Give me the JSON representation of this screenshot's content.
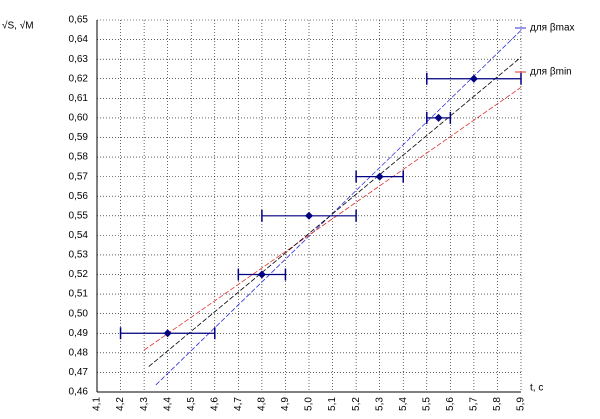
{
  "chart_data": {
    "type": "scatter",
    "y_label": "√S, √M",
    "x_label": "t, c",
    "xlim": [
      4.1,
      5.9
    ],
    "ylim": [
      0.46,
      0.65
    ],
    "grid": true,
    "xticks": [
      {
        "value": 4.1,
        "label": "4,1"
      },
      {
        "value": 4.2,
        "label": "4,2"
      },
      {
        "value": 4.3,
        "label": "4,3"
      },
      {
        "value": 4.4,
        "label": "4,4"
      },
      {
        "value": 4.5,
        "label": "4,5"
      },
      {
        "value": 4.6,
        "label": "4,6"
      },
      {
        "value": 4.7,
        "label": "4,7"
      },
      {
        "value": 4.8,
        "label": "4,8"
      },
      {
        "value": 4.9,
        "label": "4,9"
      },
      {
        "value": 5,
        "label": "5,0"
      },
      {
        "value": 5.1,
        "label": "5,1"
      },
      {
        "value": 5.2,
        "label": "5,2"
      },
      {
        "value": 5.3,
        "label": "5,3"
      },
      {
        "value": 5.4,
        "label": "5,4"
      },
      {
        "value": 5.5,
        "label": "5,5"
      },
      {
        "value": 5.6,
        "label": "5,6"
      },
      {
        "value": 5.7,
        "label": "5,7"
      },
      {
        "value": 5.8,
        "label": "5,8"
      },
      {
        "value": 5.9,
        "label": "5,9"
      }
    ],
    "yticks": [
      {
        "value": 0.46,
        "label": "0,46"
      },
      {
        "value": 0.47,
        "label": "0,47"
      },
      {
        "value": 0.48,
        "label": "0,48"
      },
      {
        "value": 0.49,
        "label": "0,49"
      },
      {
        "value": 0.5,
        "label": "0,50"
      },
      {
        "value": 0.51,
        "label": "0,51"
      },
      {
        "value": 0.52,
        "label": "0,52"
      },
      {
        "value": 0.53,
        "label": "0,53"
      },
      {
        "value": 0.54,
        "label": "0,54"
      },
      {
        "value": 0.55,
        "label": "0,55"
      },
      {
        "value": 0.56,
        "label": "0,56"
      },
      {
        "value": 0.57,
        "label": "0,57"
      },
      {
        "value": 0.58,
        "label": "0,58"
      },
      {
        "value": 0.59,
        "label": "0,59"
      },
      {
        "value": 0.6,
        "label": "0,60"
      },
      {
        "value": 0.61,
        "label": "0,61"
      },
      {
        "value": 0.62,
        "label": "0,62"
      },
      {
        "value": 0.63,
        "label": "0,63"
      },
      {
        "value": 0.64,
        "label": "0,64"
      },
      {
        "value": 0.65,
        "label": "0,65"
      }
    ],
    "points": {
      "color": "#000080",
      "x": [
        4.4,
        4.8,
        5.0,
        5.3,
        5.55,
        5.7
      ],
      "values": [
        0.49,
        0.52,
        0.55,
        0.57,
        0.6,
        0.62
      ],
      "x_low": [
        4.2,
        4.7,
        4.8,
        5.2,
        5.5,
        5.5
      ],
      "x_high": [
        4.6,
        4.9,
        5.2,
        5.4,
        5.6,
        5.9
      ]
    },
    "series": [
      {
        "name": "для βmax",
        "color": "#3030e0",
        "x": [
          4.35,
          5.9
        ],
        "values": [
          0.4636,
          0.6447
        ]
      },
      {
        "name": "для βmin",
        "color": "#e03030",
        "x": [
          4.3,
          5.9
        ],
        "values": [
          0.4814,
          0.6156
        ]
      },
      {
        "color": "#000000",
        "x": [
          4.32,
          5.9
        ],
        "values": [
          0.473,
          0.631
        ]
      }
    ]
  }
}
